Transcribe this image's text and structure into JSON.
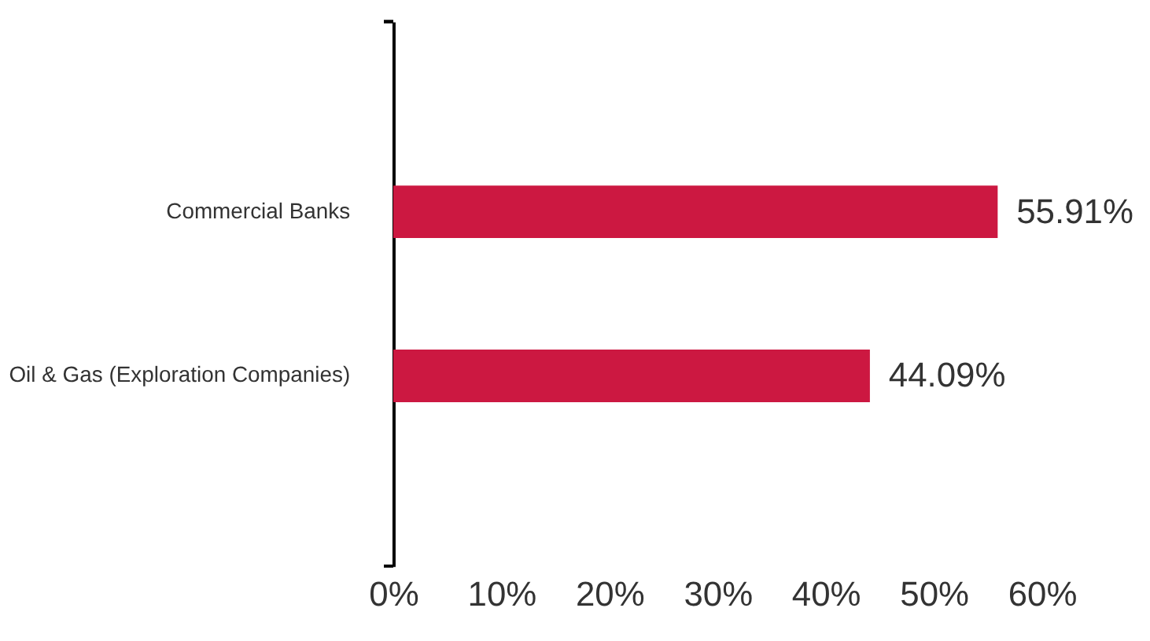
{
  "chart_data": {
    "type": "bar",
    "orientation": "horizontal",
    "categories": [
      "Commercial Banks",
      "Oil & Gas (Exploration Companies)"
    ],
    "values": [
      55.91,
      44.09
    ],
    "color": "#cc1841",
    "value_labels": [
      "55.91%",
      "44.09%"
    ],
    "xlim": [
      0,
      60
    ],
    "xticks": [
      {
        "value": 0,
        "label": "0%"
      },
      {
        "value": 10,
        "label": "10%"
      },
      {
        "value": 20,
        "label": "20%"
      },
      {
        "value": 30,
        "label": "30%"
      },
      {
        "value": 40,
        "label": "40%"
      },
      {
        "value": 50,
        "label": "50%"
      },
      {
        "value": 60,
        "label": "60%"
      }
    ],
    "grid": false
  }
}
